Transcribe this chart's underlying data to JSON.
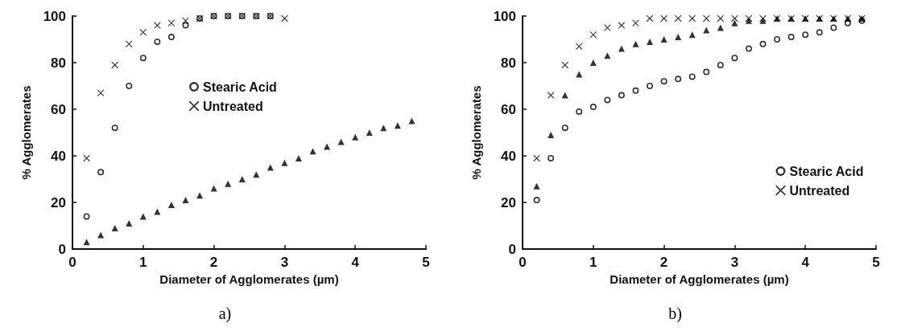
{
  "chart_data": [
    {
      "type": "scatter",
      "xlabel": "Diameter of Agglomerates (µm)",
      "ylabel": "% Agglomerates",
      "xlim": [
        0,
        5
      ],
      "xticks": [
        0,
        1,
        2,
        3,
        4,
        5
      ],
      "ylim": [
        0,
        100
      ],
      "yticks": [
        0,
        20,
        40,
        60,
        80,
        100
      ],
      "grid": false,
      "legend": "right",
      "annotations": [
        "a)"
      ],
      "series": [
        {
          "name": "Stearic Acid",
          "color": "#000000",
          "marker": "circle",
          "x": [
            0.2,
            0.4,
            0.6,
            0.8,
            1.0,
            1.2,
            1.4,
            1.6,
            1.8,
            2.0,
            2.2,
            2.4,
            2.6,
            2.8
          ],
          "values": [
            14,
            33,
            52,
            70,
            82,
            89,
            91,
            96,
            99,
            100,
            100,
            100,
            100,
            100
          ]
        },
        {
          "color": "#000000",
          "marker": "triangle",
          "x": [
            0.2,
            0.4,
            0.6,
            0.8,
            1.0,
            1.2,
            1.4,
            1.6,
            1.8,
            2.0,
            2.2,
            2.4,
            2.6,
            2.8,
            3.0,
            3.2,
            3.4,
            3.6,
            3.8,
            4.0,
            4.2,
            4.4,
            4.6,
            4.8
          ],
          "values": [
            3,
            6,
            9,
            11,
            14,
            16,
            19,
            21,
            23,
            26,
            28,
            30,
            32,
            35,
            37,
            39,
            42,
            44,
            46,
            48,
            50,
            52,
            53,
            55
          ]
        },
        {
          "name": "Untreated",
          "color": "#000000",
          "marker": "cross",
          "x": [
            0.2,
            0.4,
            0.6,
            0.8,
            1.0,
            1.2,
            1.4,
            1.6,
            1.8,
            2.0,
            2.2,
            2.4,
            2.6,
            2.8,
            3.0
          ],
          "values": [
            39,
            67,
            79,
            88,
            93,
            96,
            97,
            98,
            99,
            100,
            100,
            100,
            100,
            100,
            99
          ]
        }
      ]
    },
    {
      "type": "scatter",
      "xlabel": "Diameter of Agglomerates (µm)",
      "ylabel": "% Agglomerates",
      "xlim": [
        0,
        5
      ],
      "xticks": [
        0,
        1,
        2,
        3,
        4,
        5
      ],
      "ylim": [
        0,
        100
      ],
      "yticks": [
        0,
        20,
        40,
        60,
        80,
        100
      ],
      "grid": false,
      "legend": "bottom right",
      "annotations": [
        "b)"
      ],
      "series": [
        {
          "name": "Stearic Acid",
          "color": "#000000",
          "marker": "circle",
          "x": [
            0.2,
            0.4,
            0.6,
            0.8,
            1.0,
            1.2,
            1.4,
            1.6,
            1.8,
            2.0,
            2.2,
            2.4,
            2.6,
            2.8,
            3.0,
            3.2,
            3.4,
            3.6,
            3.8,
            4.0,
            4.2,
            4.4,
            4.6,
            4.8
          ],
          "values": [
            21,
            39,
            52,
            59,
            61,
            64,
            66,
            68,
            70,
            72,
            73,
            74,
            76,
            79,
            82,
            86,
            88,
            90,
            91,
            92,
            93,
            95,
            97,
            98
          ]
        },
        {
          "color": "#000000",
          "marker": "triangle",
          "x": [
            0.2,
            0.4,
            0.6,
            0.8,
            1.0,
            1.2,
            1.4,
            1.6,
            1.8,
            2.0,
            2.2,
            2.4,
            2.6,
            2.8,
            3.0,
            3.2,
            3.4,
            3.6,
            3.8,
            4.0,
            4.2,
            4.4,
            4.6,
            4.8
          ],
          "values": [
            27,
            49,
            66,
            75,
            80,
            83,
            86,
            88,
            89,
            90,
            91,
            92,
            94,
            95,
            97,
            98,
            98,
            99,
            99,
            99,
            99,
            99,
            99,
            99
          ]
        },
        {
          "name": "Untreated",
          "color": "#000000",
          "marker": "cross",
          "x": [
            0.2,
            0.4,
            0.6,
            0.8,
            1.0,
            1.2,
            1.4,
            1.6,
            1.8,
            2.0,
            2.2,
            2.4,
            2.6,
            2.8,
            3.0,
            3.2,
            3.4,
            3.6,
            3.8,
            4.0,
            4.2,
            4.4,
            4.6,
            4.8
          ],
          "values": [
            39,
            66,
            79,
            87,
            92,
            95,
            96,
            97,
            99,
            99,
            99,
            99,
            99,
            99,
            99,
            99,
            99,
            99,
            99,
            99,
            99,
            99,
            99,
            99
          ]
        }
      ]
    }
  ]
}
